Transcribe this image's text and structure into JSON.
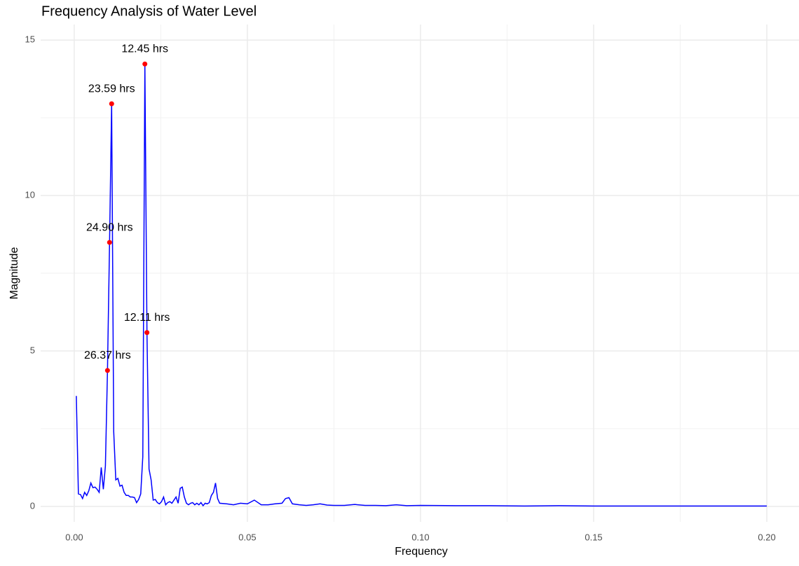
{
  "chart_data": {
    "type": "line",
    "title": "Frequency Analysis of Water Level",
    "x_label": "Frequency",
    "y_label": "Magnitude",
    "xlim": [
      -0.0097,
      0.2093
    ],
    "ylim": [
      -0.5,
      15.5
    ],
    "xticks": [
      {
        "value": 0,
        "label": "0.00"
      },
      0.05,
      {
        "value": 0.1,
        "label": "0.10"
      },
      0.15,
      {
        "value": 0.2,
        "label": "0.20"
      }
    ],
    "yticks": [
      0,
      5,
      10,
      15
    ],
    "x_minor_ticks": [
      0.025,
      0.075,
      0.125,
      0.175
    ],
    "y_minor_ticks": [
      2.5,
      7.5,
      12.5
    ],
    "grid": true,
    "series": [
      {
        "color": "#0000ff",
        "x": [
          0.0006,
          0.0012,
          0.0018,
          0.0024,
          0.003,
          0.0036,
          0.0042,
          0.0048,
          0.0054,
          0.006,
          0.0066,
          0.0072,
          0.0078,
          0.0084,
          0.009,
          0.0096,
          0.0102,
          0.0108,
          0.0114,
          0.012,
          0.0126,
          0.0132,
          0.0138,
          0.0144,
          0.015,
          0.0156,
          0.0162,
          0.0168,
          0.0174,
          0.018,
          0.0186,
          0.0192,
          0.0198,
          0.0204,
          0.021,
          0.0216,
          0.0222,
          0.0228,
          0.0234,
          0.024,
          0.0246,
          0.0252,
          0.0258,
          0.0264,
          0.027,
          0.0276,
          0.0282,
          0.0288,
          0.0294,
          0.03,
          0.0306,
          0.0312,
          0.0318,
          0.0324,
          0.033,
          0.0336,
          0.0342,
          0.0348,
          0.0354,
          0.036,
          0.0366,
          0.0372,
          0.0378,
          0.0384,
          0.039,
          0.0396,
          0.0402,
          0.0408,
          0.0414,
          0.042,
          0.044,
          0.046,
          0.048,
          0.05,
          0.052,
          0.054,
          0.056,
          0.058,
          0.06,
          0.061,
          0.062,
          0.063,
          0.065,
          0.067,
          0.069,
          0.071,
          0.073,
          0.075,
          0.078,
          0.081,
          0.084,
          0.087,
          0.09,
          0.093,
          0.096,
          0.1,
          0.11,
          0.12,
          0.13,
          0.14,
          0.15,
          0.16,
          0.17,
          0.18,
          0.19,
          0.2
        ],
        "values": [
          3.55,
          0.4,
          0.38,
          0.25,
          0.45,
          0.35,
          0.5,
          0.75,
          0.6,
          0.62,
          0.55,
          0.45,
          1.25,
          0.55,
          1.3,
          4.37,
          8.49,
          12.95,
          2.4,
          0.85,
          0.9,
          0.65,
          0.68,
          0.45,
          0.35,
          0.35,
          0.3,
          0.3,
          0.28,
          0.12,
          0.22,
          0.4,
          1.6,
          14.23,
          5.59,
          1.2,
          0.85,
          0.2,
          0.22,
          0.12,
          0.08,
          0.15,
          0.3,
          0.05,
          0.12,
          0.15,
          0.1,
          0.2,
          0.3,
          0.1,
          0.58,
          0.62,
          0.3,
          0.1,
          0.05,
          0.1,
          0.12,
          0.05,
          0.1,
          0.05,
          0.12,
          0.02,
          0.1,
          0.08,
          0.12,
          0.35,
          0.45,
          0.75,
          0.25,
          0.1,
          0.08,
          0.05,
          0.1,
          0.08,
          0.2,
          0.05,
          0.05,
          0.08,
          0.1,
          0.25,
          0.28,
          0.08,
          0.05,
          0.03,
          0.05,
          0.08,
          0.04,
          0.03,
          0.03,
          0.06,
          0.03,
          0.03,
          0.02,
          0.05,
          0.02,
          0.03,
          0.02,
          0.02,
          0.01,
          0.02,
          0.01,
          0.01,
          0.01,
          0.01,
          0.01,
          0.01
        ]
      }
    ],
    "peaks": {
      "color": "#ff0000",
      "x": [
        0.0096,
        0.0102,
        0.0108,
        0.0204,
        0.021
      ],
      "values": [
        4.37,
        8.49,
        12.95,
        14.23,
        5.59
      ],
      "labels": [
        "26.37 hrs",
        "24.90 hrs",
        "23.59 hrs",
        "12.45 hrs",
        "12.11 hrs"
      ]
    }
  }
}
